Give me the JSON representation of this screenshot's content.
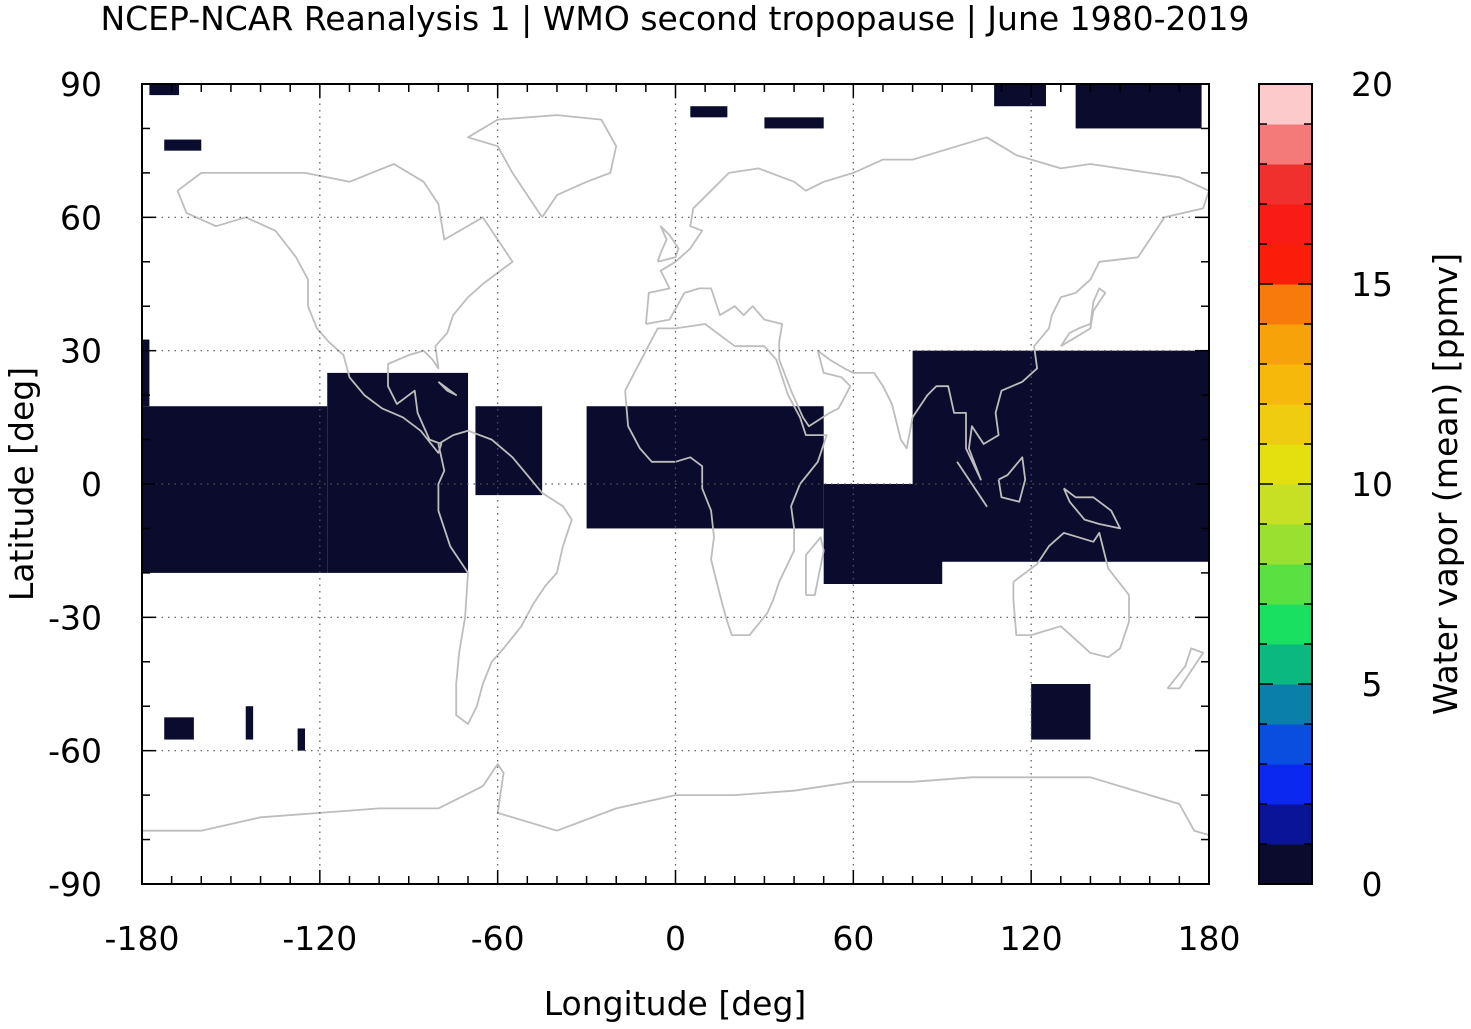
{
  "chart_data": {
    "type": "heatmap",
    "title": "NCEP-NCAR Reanalysis 1 | WMO second tropopause | June 1980-2019",
    "xlabel": "Longitude [deg]",
    "ylabel": "Latitude [deg]",
    "xlim": [
      -180,
      180
    ],
    "ylim": [
      -90,
      90
    ],
    "xticks": [
      -180,
      -120,
      -60,
      0,
      60,
      120,
      180
    ],
    "xtick_labels": [
      "-180",
      "-120",
      "-60",
      "0",
      "60",
      "120",
      "180"
    ],
    "yticks": [
      90,
      60,
      30,
      0,
      -30,
      -60,
      -90
    ],
    "ytick_labels": [
      "90",
      "60",
      "30",
      "0",
      "-30",
      "-60",
      "-90"
    ],
    "grid": true,
    "cell_size_deg": 2.5,
    "colorbar": {
      "label": "Water vapor (mean) [ppmv]",
      "range": [
        0,
        20
      ],
      "ticks": [
        0,
        5,
        10,
        15,
        20
      ],
      "tick_labels": [
        "0",
        "5",
        "10",
        "15",
        "20"
      ],
      "colors": [
        "#0b0b2e",
        "#0a1496",
        "#0a28f0",
        "#0a4ee0",
        "#0a7fa8",
        "#0ab880",
        "#19e060",
        "#5ae040",
        "#9ae030",
        "#c8e024",
        "#e4e010",
        "#f0cc10",
        "#f6b80a",
        "#f8a20a",
        "#f87a0a",
        "#fa1e0a",
        "#f81c14",
        "#f0302c",
        "#f47a7a",
        "#fccaca"
      ]
    },
    "value_note_note": "",
    "regions_lonlat": [
      {
        "lon": [
          -180,
          -117.5
        ],
        "lat": [
          -20,
          17.5
        ],
        "value": 0.3
      },
      {
        "lon": [
          -180,
          -177.5
        ],
        "lat": [
          17.5,
          32.5
        ],
        "value": 0.3
      },
      {
        "lon": [
          -117.5,
          -70
        ],
        "lat": [
          -20,
          25
        ],
        "value": 0.3
      },
      {
        "lon": [
          -67.5,
          -45
        ],
        "lat": [
          -2.5,
          17.5
        ],
        "value": 0.3
      },
      {
        "lon": [
          -30,
          50
        ],
        "lat": [
          -10,
          17.5
        ],
        "value": 0.3
      },
      {
        "lon": [
          50,
          90
        ],
        "lat": [
          -22.5,
          0
        ],
        "value": 0.3
      },
      {
        "lon": [
          80,
          180
        ],
        "lat": [
          -17.5,
          30
        ],
        "value": 0.3
      },
      {
        "lon": [
          -177.5,
          -167.5
        ],
        "lat": [
          87.5,
          90
        ],
        "value": 0.3
      },
      {
        "lon": [
          -172.5,
          -160
        ],
        "lat": [
          75,
          77.5
        ],
        "value": 0.3
      },
      {
        "lon": [
          5,
          17.5
        ],
        "lat": [
          82.5,
          85
        ],
        "value": 0.3
      },
      {
        "lon": [
          30,
          50
        ],
        "lat": [
          80,
          82.5
        ],
        "value": 0.3
      },
      {
        "lon": [
          107.5,
          125
        ],
        "lat": [
          85,
          90
        ],
        "value": 0.3
      },
      {
        "lon": [
          135,
          177.5
        ],
        "lat": [
          80,
          90
        ],
        "value": 0.3
      },
      {
        "lon": [
          120,
          140
        ],
        "lat": [
          -57.5,
          -45
        ],
        "value": 0.3
      },
      {
        "lon": [
          -172.5,
          -162.5
        ],
        "lat": [
          -57.5,
          -52.5
        ],
        "value": 0.3
      },
      {
        "lon": [
          -145,
          -142.5
        ],
        "lat": [
          -57.5,
          -50
        ],
        "value": 0.3
      },
      {
        "lon": [
          -127.5,
          -125
        ],
        "lat": [
          -60,
          -55
        ],
        "value": 0.3
      }
    ]
  }
}
